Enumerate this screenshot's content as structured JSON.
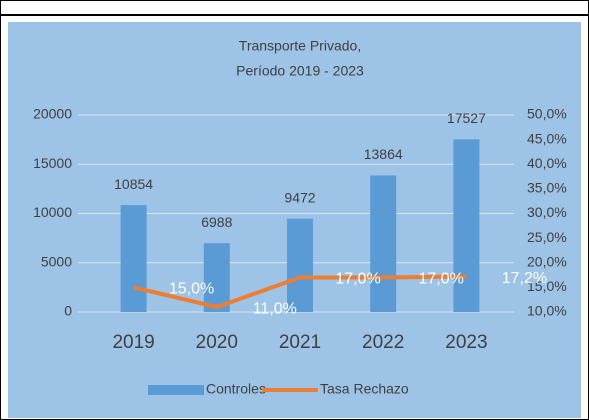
{
  "chart_data": {
    "type": "bar-line",
    "title": [
      "Transporte Privado,",
      "Período 2019 - 2023"
    ],
    "categories": [
      "2019",
      "2020",
      "2021",
      "2022",
      "2023"
    ],
    "series": [
      {
        "name": "Controles",
        "type": "bar",
        "color": "#5b9bd5",
        "values": [
          10854,
          6988,
          9472,
          13864,
          17527
        ]
      },
      {
        "name": "Tasa Rechazo",
        "type": "line",
        "axis": "y2",
        "color": "#ed7d31",
        "values": [
          15.0,
          11.0,
          17.0,
          17.0,
          17.2
        ],
        "value_labels": [
          "15,0%",
          "11,0%",
          "17,0%",
          "17,0%",
          "17,2%"
        ]
      }
    ],
    "ylim": [
      0,
      20000
    ],
    "yticks": [
      0,
      5000,
      10000,
      15000,
      20000
    ],
    "y2lim": [
      10,
      50
    ],
    "y2ticks": [
      {
        "value": 10,
        "label": "10,0%"
      },
      {
        "value": 15,
        "label": "15,0%"
      },
      {
        "value": 20,
        "label": "20,0%"
      },
      {
        "value": 25,
        "label": "25,0%"
      },
      {
        "value": 30,
        "label": "30,0%"
      },
      {
        "value": 35,
        "label": "35,0%"
      },
      {
        "value": 40,
        "label": "40,0%"
      },
      {
        "value": 45,
        "label": "45,0%"
      },
      {
        "value": 50,
        "label": "50,0%"
      }
    ],
    "grid": true,
    "legend": "bottom"
  }
}
